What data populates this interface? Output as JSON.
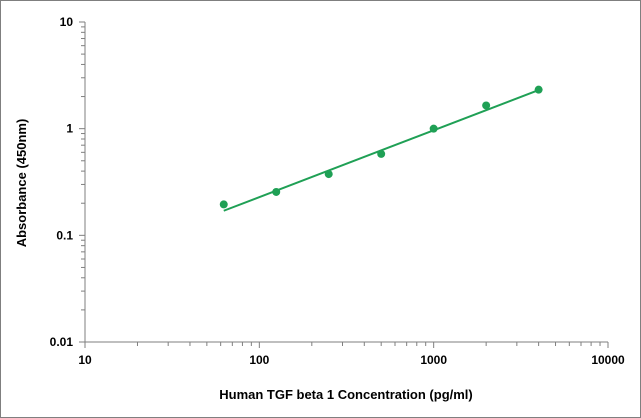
{
  "chart_data": {
    "type": "scatter",
    "title": "",
    "xlabel": "Human TGF beta 1 Concentration (pg/ml)",
    "ylabel": "Absorbance (450nm)",
    "x_scale": "log",
    "y_scale": "log",
    "xlim": [
      10,
      10000
    ],
    "ylim": [
      0.01,
      10
    ],
    "x_ticks": [
      10,
      100,
      1000,
      10000
    ],
    "x_tick_labels": [
      "10",
      "100",
      "1000",
      "10000"
    ],
    "y_ticks": [
      0.01,
      0.1,
      1,
      10
    ],
    "y_tick_labels": [
      "0.01",
      "0.1",
      "1",
      "10"
    ],
    "grid": false,
    "legend": "none",
    "colors": {
      "series": "#1fa055",
      "axis": "#7f7f7f"
    },
    "series": [
      {
        "x": [
          62.5,
          125,
          250,
          500,
          1000,
          2000,
          4000
        ],
        "y": [
          0.195,
          0.255,
          0.375,
          0.58,
          1.0,
          1.65,
          2.32
        ]
      }
    ],
    "trendline": {
      "x": [
        62.5,
        4000
      ],
      "y": [
        0.17,
        2.3
      ]
    }
  }
}
